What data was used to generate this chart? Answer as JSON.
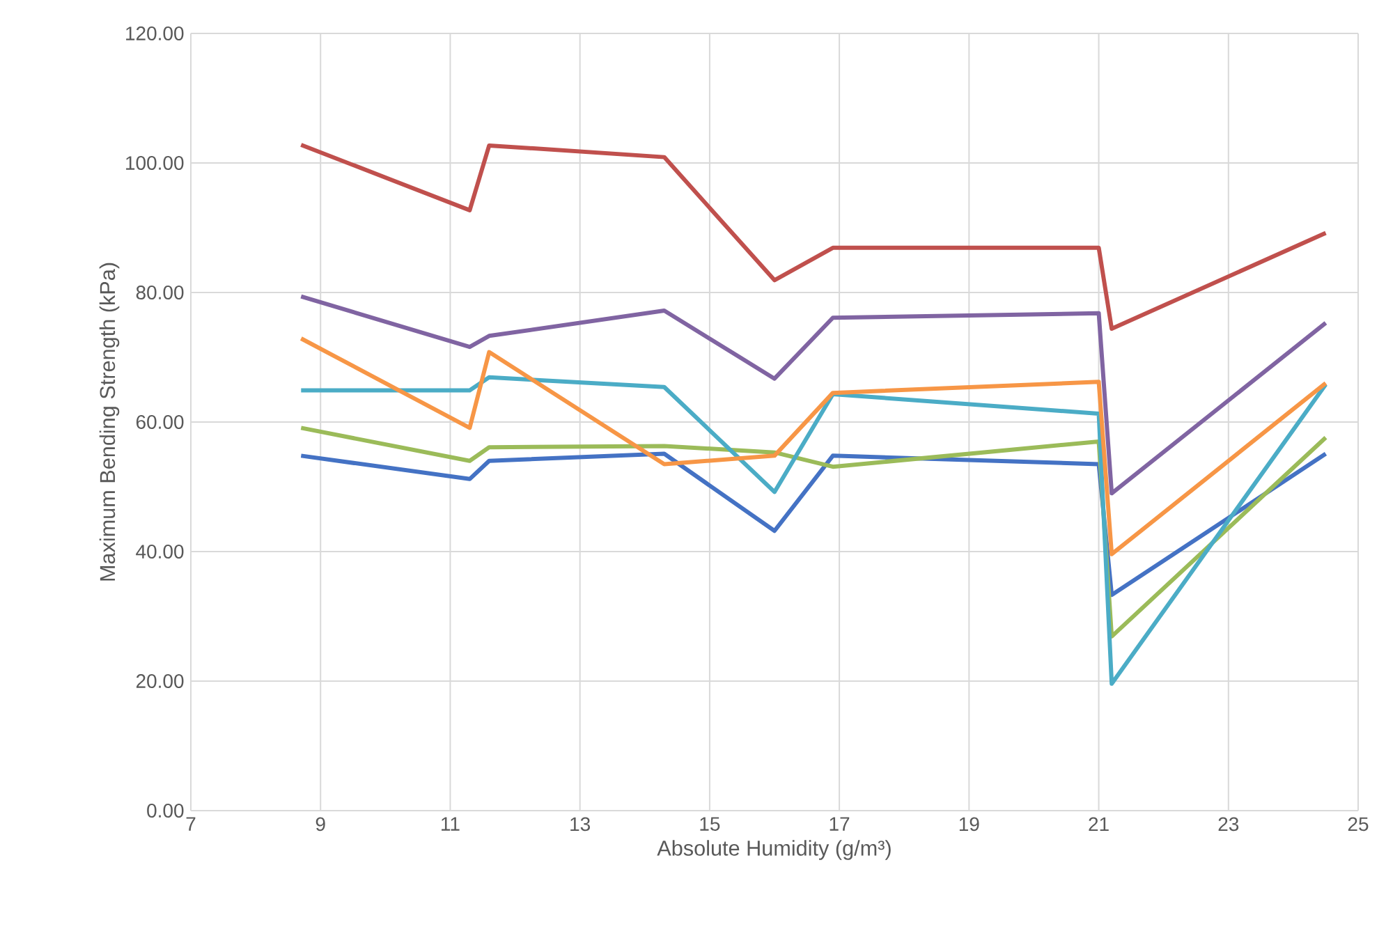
{
  "chart_data": {
    "type": "line",
    "xlabel": "Absolute Humidity (g/m³)",
    "ylabel": "Maximum Bending Strength (kPa)",
    "x": [
      8.7,
      11.3,
      11.6,
      14.3,
      16.0,
      16.9,
      21.0,
      21.2,
      24.5
    ],
    "series": [
      {
        "color": "#4472c4",
        "values": [
          54.8,
          51.2,
          54.0,
          55.1,
          43.2,
          54.8,
          53.5,
          33.3,
          55.1
        ]
      },
      {
        "color": "#c0504d",
        "values": [
          102.8,
          92.7,
          102.7,
          100.9,
          81.9,
          86.9,
          86.9,
          74.4,
          89.2
        ]
      },
      {
        "color": "#9bbb59",
        "values": [
          59.1,
          54.0,
          56.1,
          56.3,
          55.3,
          53.1,
          57.0,
          26.9,
          57.6
        ]
      },
      {
        "color": "#8064a2",
        "values": [
          79.4,
          71.6,
          73.3,
          77.2,
          66.7,
          76.1,
          76.8,
          49.0,
          75.3
        ]
      },
      {
        "color": "#4bacc6",
        "values": [
          64.9,
          64.9,
          66.9,
          65.4,
          49.2,
          64.3,
          61.3,
          19.6,
          65.8
        ]
      },
      {
        "color": "#f79646",
        "values": [
          72.9,
          59.1,
          70.8,
          53.5,
          54.8,
          64.5,
          66.2,
          39.6,
          66.0
        ]
      }
    ],
    "xlim": [
      7,
      25
    ],
    "xticks": [
      7,
      9,
      11,
      13,
      15,
      17,
      19,
      21,
      23,
      25
    ],
    "ylim": [
      0,
      120
    ],
    "yticks": [
      {
        "value": 0,
        "label": "0.00"
      },
      {
        "value": 20,
        "label": "20.00"
      },
      {
        "value": 40,
        "label": "40.00"
      },
      {
        "value": 60,
        "label": "60.00"
      },
      {
        "value": 80,
        "label": "80.00"
      },
      {
        "value": 100,
        "label": "100.00"
      },
      {
        "value": 120,
        "label": "120.00"
      }
    ],
    "grid": true,
    "legend": false,
    "marker": "none",
    "line_style": "solid"
  }
}
